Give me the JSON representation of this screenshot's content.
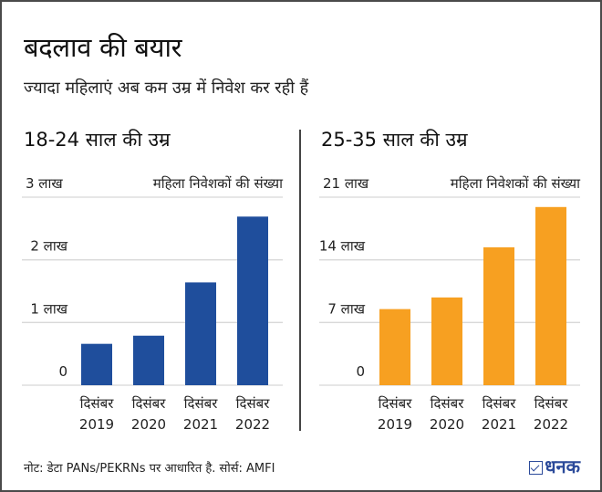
{
  "header": {
    "title": "बदलाव की बयार",
    "subtitle": "ज्यादा महिलाएं अब कम उम्र में निवेश कर रही हैं"
  },
  "colors": {
    "left_bar": "#1f4e9c",
    "right_bar": "#f7a021",
    "brand": "#2b4a9a"
  },
  "chart_data": [
    {
      "type": "bar",
      "title": "18-24 साल की उम्र",
      "legend": "महिला निवेशकों की संख्या",
      "legend_position": "top-right",
      "xlabel": "",
      "ylabel": "",
      "unit": "लाख",
      "categories": [
        {
          "line1": "दिसंबर",
          "line2": "2019"
        },
        {
          "line1": "दिसंबर",
          "line2": "2020"
        },
        {
          "line1": "दिसंबर",
          "line2": "2021"
        },
        {
          "line1": "दिसंबर",
          "line2": "2022"
        }
      ],
      "values": [
        0.66,
        0.79,
        1.64,
        2.69
      ],
      "ylim": [
        0,
        3
      ],
      "yticks": [
        {
          "value": 0,
          "label": "0"
        },
        {
          "value": 1,
          "label": "1 लाख"
        },
        {
          "value": 2,
          "label": "2 लाख"
        },
        {
          "value": 3,
          "label": "3 लाख"
        }
      ],
      "grid": true
    },
    {
      "type": "bar",
      "title": "25-35 साल की उम्र",
      "legend": "महिला निवेशकों की संख्या",
      "legend_position": "top-right",
      "xlabel": "",
      "ylabel": "",
      "unit": "लाख",
      "categories": [
        {
          "line1": "दिसंबर",
          "line2": "2019"
        },
        {
          "line1": "दिसंबर",
          "line2": "2020"
        },
        {
          "line1": "दिसंबर",
          "line2": "2021"
        },
        {
          "line1": "दिसंबर",
          "line2": "2022"
        }
      ],
      "values": [
        8.5,
        9.8,
        15.4,
        19.9
      ],
      "ylim": [
        0,
        21
      ],
      "yticks": [
        {
          "value": 0,
          "label": "0"
        },
        {
          "value": 7,
          "label": "7 लाख"
        },
        {
          "value": 14,
          "label": "14 लाख"
        },
        {
          "value": 21,
          "label": "21 लाख"
        }
      ],
      "grid": true
    }
  ],
  "footer": {
    "note": "नोट: डेटा PANs/PEKRNs पर आधारित है. सोर्स: AMFI",
    "brand": "धनक",
    "brand_icon": "checkbox-icon"
  }
}
